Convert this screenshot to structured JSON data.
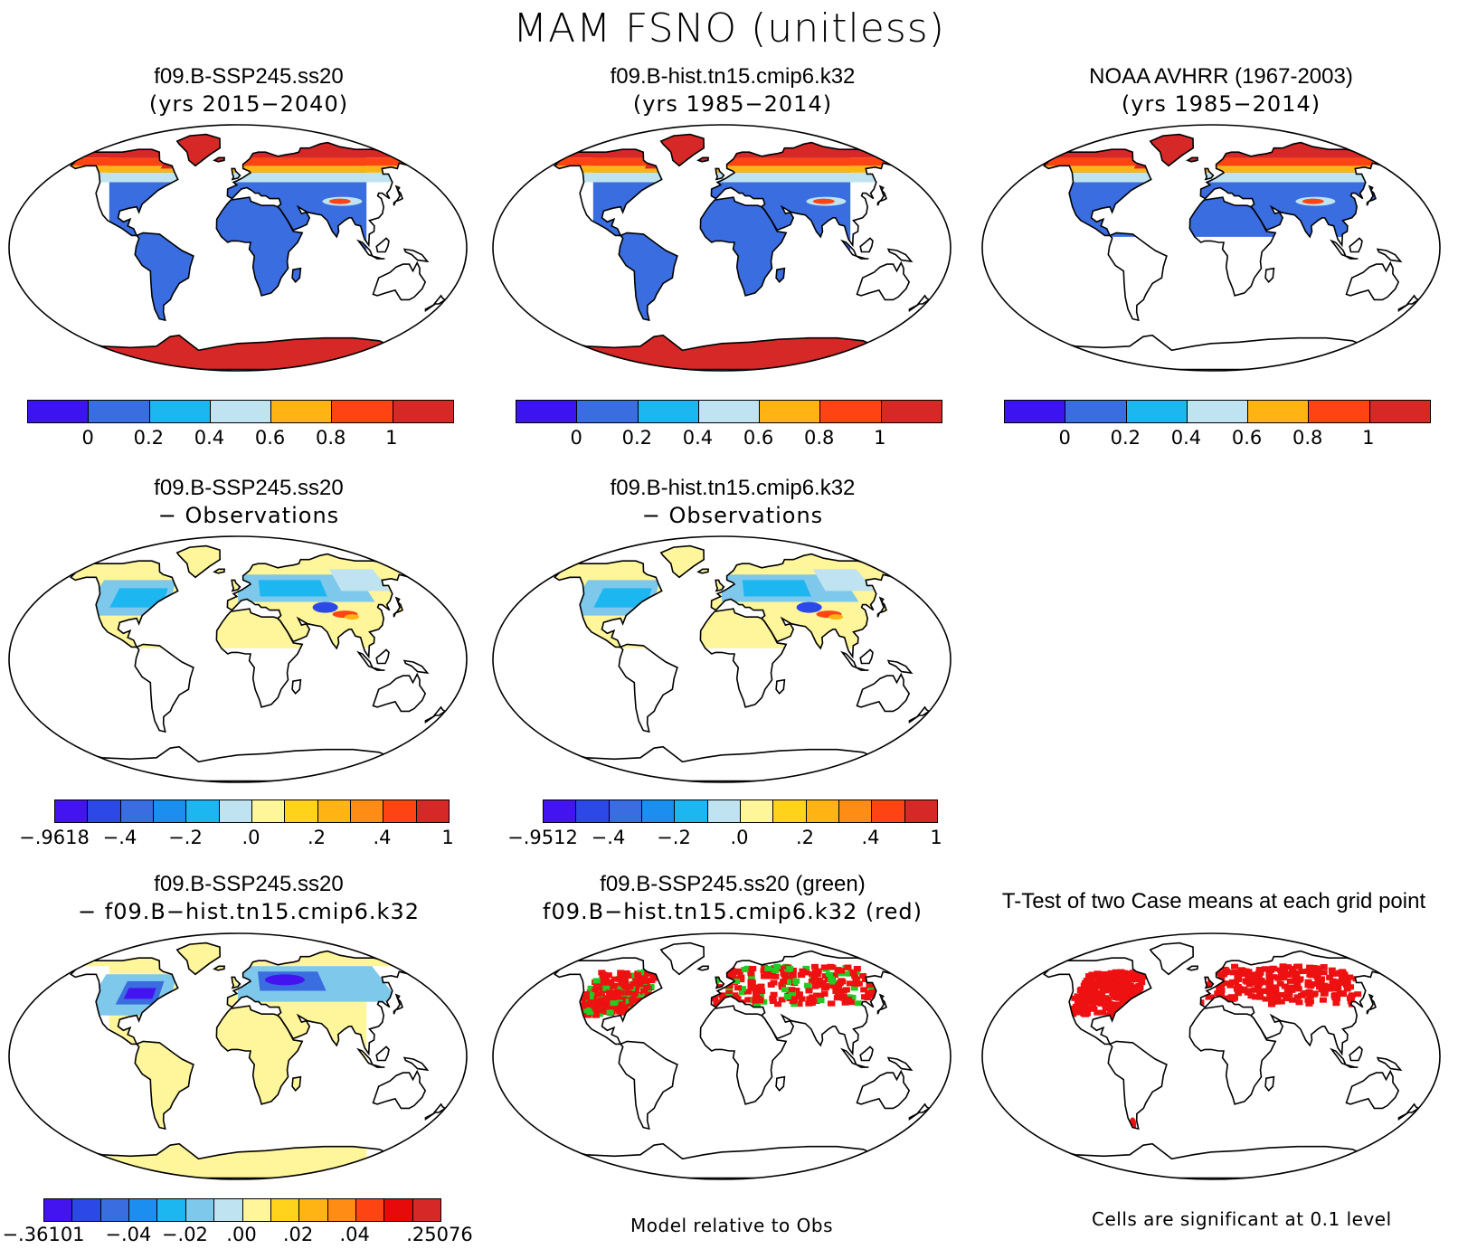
{
  "main_title": "MAM FSNO (unitless)",
  "colors": {
    "seq7": [
      "#3b14f0",
      "#3a6de0",
      "#1cb6f0",
      "#bfe3f0",
      "#ffb414",
      "#ff4414",
      "#d72828"
    ],
    "diff12": [
      "#4414f0",
      "#2c49e8",
      "#3a6de0",
      "#1c8ef0",
      "#1cb6f0",
      "#7ec8ec",
      "#bfe3f0",
      "#fff59a",
      "#ffd21c",
      "#ffb414",
      "#ff8c14",
      "#ff4414",
      "#e60a0a",
      "#d72828"
    ],
    "land_snowfree": "#3a6de0",
    "land_zero": "#fff59a",
    "sig_case1": "#22cc22",
    "sig_case2": "#ee1111"
  },
  "panels": [
    {
      "id": "p1",
      "title1": "f09.B-SSP245.ss20",
      "title2": "(yrs 2015−2040)"
    },
    {
      "id": "p2",
      "title1": "f09.B-hist.tn15.cmip6.k32",
      "title2": "(yrs 1985−2014)"
    },
    {
      "id": "p3",
      "title1": "NOAA AVHRR (1967-2003)",
      "title2": "(yrs 1985−2014)"
    },
    {
      "id": "p4",
      "title1": "f09.B-SSP245.ss20",
      "title2": "− Observations"
    },
    {
      "id": "p5",
      "title1": "f09.B-hist.tn15.cmip6.k32",
      "title2": "− Observations"
    },
    {
      "id": "p6",
      "title1": "f09.B-SSP245.ss20",
      "title2": "− f09.B−hist.tn15.cmip6.k32"
    },
    {
      "id": "p7",
      "title1": "f09.B-SSP245.ss20 (green)",
      "title2": "f09.B−hist.tn15.cmip6.k32 (red)"
    },
    {
      "id": "p8",
      "title1": "T-Test of two Case means at each grid point",
      "title2": ""
    }
  ],
  "colorbars": {
    "row1": [
      "0",
      "0.2",
      "0.4",
      "0.6",
      "0.8",
      "1"
    ],
    "p4": [
      "−.9618",
      "−.4",
      "−.2",
      ".0",
      ".2",
      ".4",
      "1"
    ],
    "p5": [
      "−.9512",
      "−.4",
      "−.2",
      ".0",
      ".2",
      ".4",
      "1"
    ],
    "p6": [
      "−.36101",
      "−.04",
      "−.02",
      ".00",
      ".02",
      ".04",
      ".25076"
    ]
  },
  "footnotes": {
    "middle": "Model relative to Obs",
    "right": "Cells are significant at 0.1 level"
  }
}
